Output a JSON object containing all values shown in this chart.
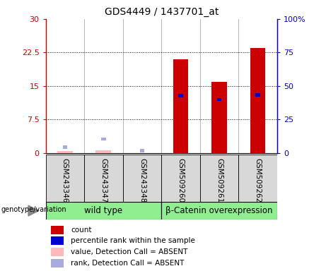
{
  "title": "GDS4449 / 1437701_at",
  "samples": [
    "GSM243346",
    "GSM243347",
    "GSM243348",
    "GSM509260",
    "GSM509261",
    "GSM509262"
  ],
  "count_values": [
    0.5,
    0.7,
    0.0,
    21.0,
    16.0,
    23.5
  ],
  "rank_values": [
    4.5,
    10.5,
    2.0,
    43.0,
    40.0,
    43.5
  ],
  "count_absent": [
    true,
    true,
    true,
    false,
    false,
    false
  ],
  "rank_absent": [
    true,
    true,
    true,
    false,
    false,
    false
  ],
  "left_ylim": [
    0,
    30
  ],
  "right_ylim": [
    0,
    100
  ],
  "left_yticks": [
    0,
    7.5,
    15,
    22.5,
    30
  ],
  "right_yticks": [
    0,
    25,
    50,
    75,
    100
  ],
  "left_yticklabels": [
    "0",
    "7.5",
    "15",
    "22.5",
    "30"
  ],
  "right_yticklabels": [
    "0",
    "25",
    "50",
    "75",
    "100%"
  ],
  "color_bar_present": "#cc0000",
  "color_bar_absent": "#ffbbbb",
  "color_rank_present": "#0000cc",
  "color_rank_absent": "#aaaadd",
  "bar_width": 0.4,
  "group_info": [
    {
      "name": "wild type",
      "start": 0,
      "end": 2,
      "color": "#90EE90"
    },
    {
      "name": "β-Catenin overexpression",
      "start": 3,
      "end": 5,
      "color": "#90EE90"
    }
  ],
  "genotype_label": "genotype/variation",
  "legend_items": [
    {
      "label": "count",
      "color": "#cc0000"
    },
    {
      "label": "percentile rank within the sample",
      "color": "#0000cc"
    },
    {
      "label": "value, Detection Call = ABSENT",
      "color": "#ffbbbb"
    },
    {
      "label": "rank, Detection Call = ABSENT",
      "color": "#aaaadd"
    }
  ]
}
